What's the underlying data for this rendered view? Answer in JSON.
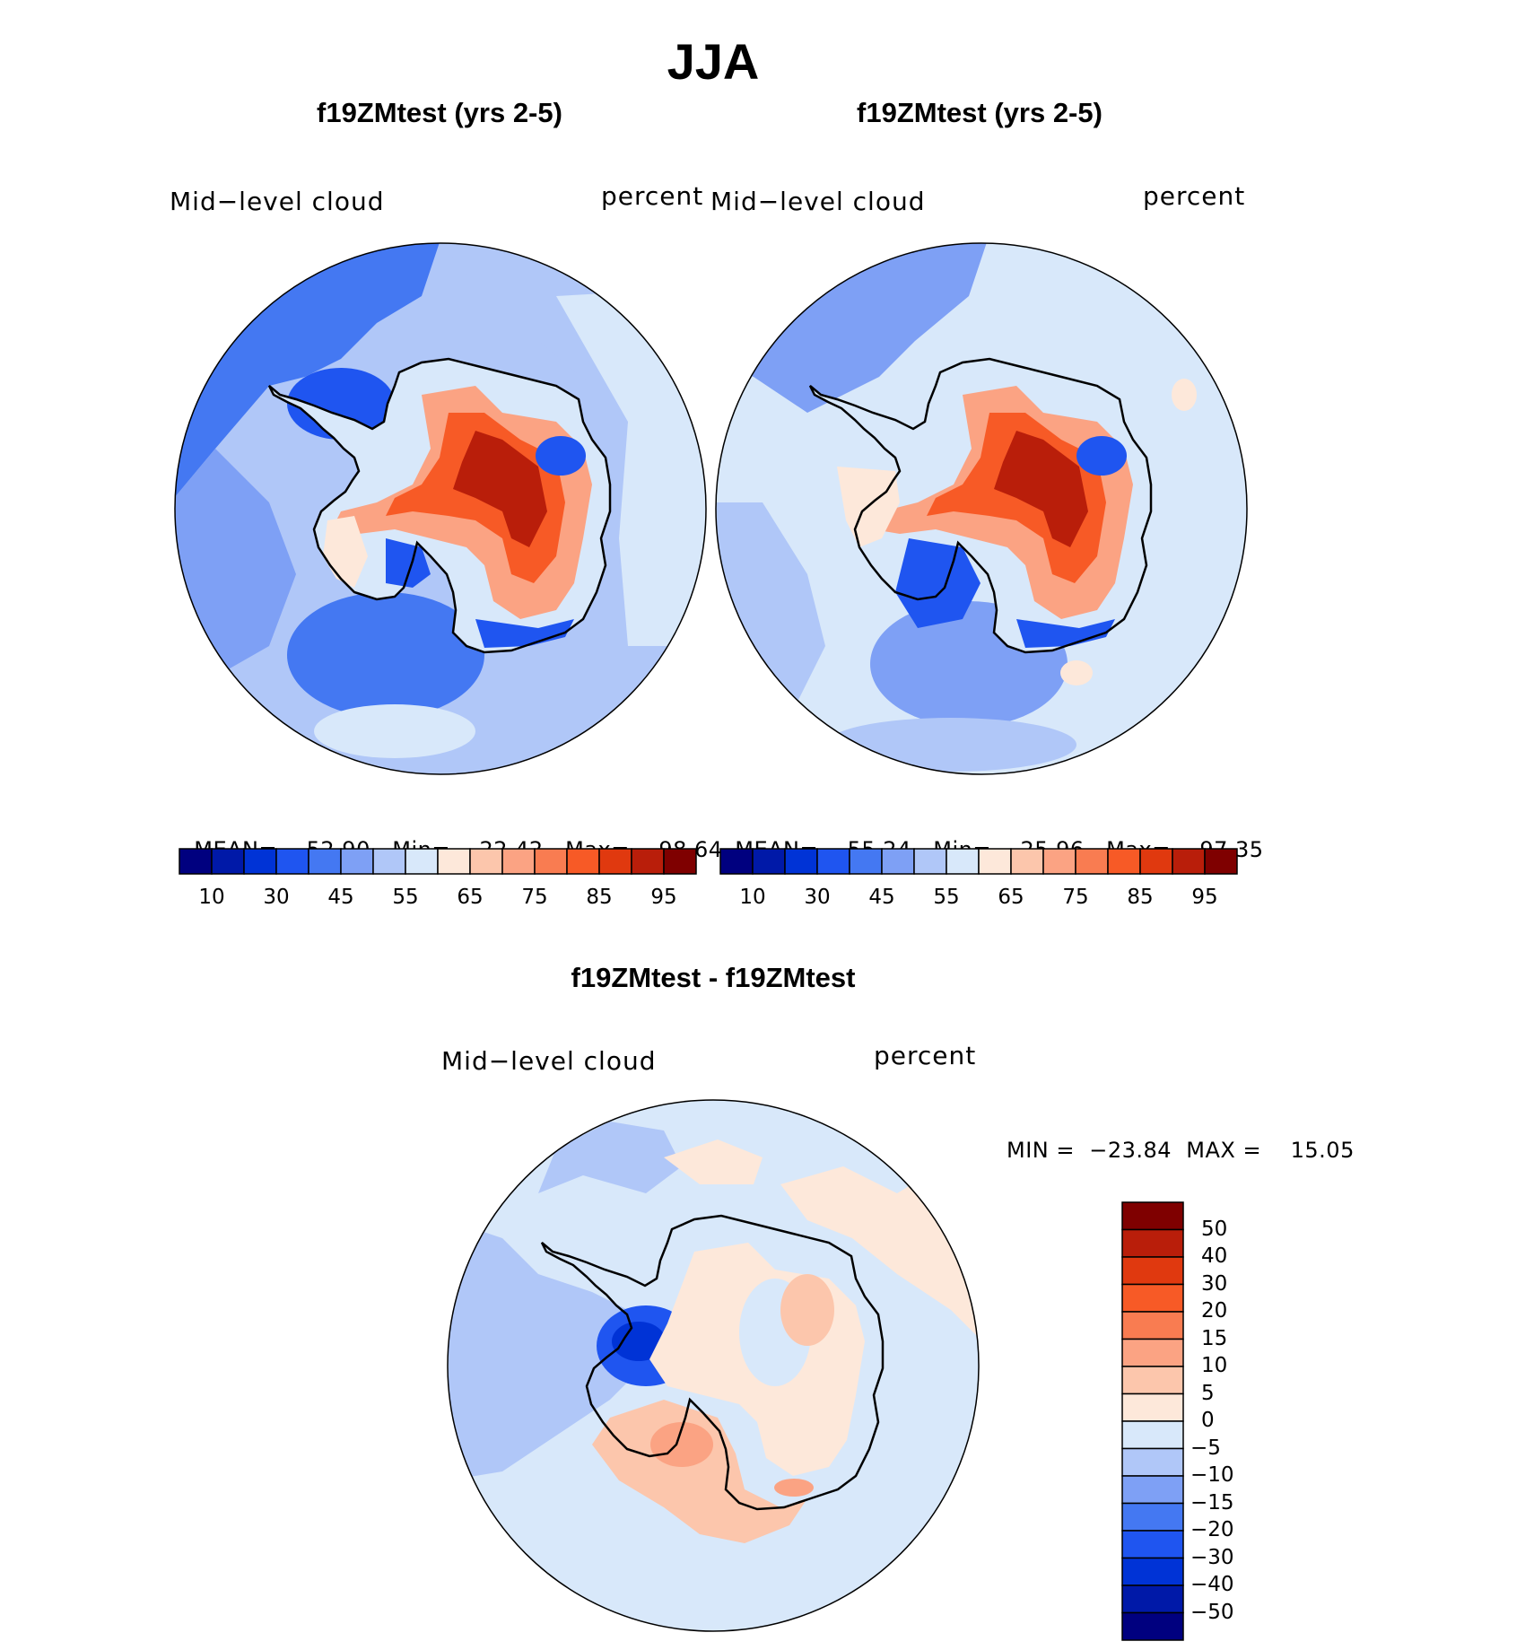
{
  "title": "JJA",
  "panels": [
    {
      "title": "f19ZMtest (yrs 2-5)",
      "variable": "Mid−level cloud",
      "units": "percent",
      "stats": {
        "mean_label": "MEAN=",
        "mean": "52.90",
        "min_label": "Min=",
        "min": "22.42",
        "max_label": "Max=",
        "max": "98.64"
      },
      "ticks": [
        "10",
        "30",
        "45",
        "55",
        "65",
        "75",
        "85",
        "95"
      ]
    },
    {
      "title": "f19ZMtest (yrs 2-5)",
      "variable": "Mid−level cloud",
      "units": "percent",
      "stats": {
        "mean_label": "MEAN=",
        "mean": "55.24",
        "min_label": "Min=",
        "min": "25.96",
        "max_label": "Max=",
        "max": "97.35"
      },
      "ticks": [
        "10",
        "30",
        "45",
        "55",
        "65",
        "75",
        "85",
        "95"
      ]
    }
  ],
  "diff": {
    "title": "f19ZMtest - f19ZMtest",
    "variable": "Mid−level cloud",
    "units": "percent",
    "minmax": "MIN =  −23.84  MAX =    15.05",
    "ticks": [
      "50",
      "40",
      "30",
      "20",
      "15",
      "10",
      "5",
      "0",
      "−5",
      "−10",
      "−15",
      "−20",
      "−30",
      "−40",
      "−50"
    ]
  },
  "colors": {
    "abs_scale": [
      "#00007f",
      "#0019a8",
      "#0033d6",
      "#1f55f0",
      "#4478f2",
      "#7ea0f5",
      "#b0c7f8",
      "#d8e8fa",
      "#fde8da",
      "#fcc6ac",
      "#fba383",
      "#f97c51",
      "#f75a26",
      "#e0390f",
      "#b91e0a",
      "#7f0000"
    ],
    "diff_scale": [
      "#7f0000",
      "#b91e0a",
      "#e0390f",
      "#f75a26",
      "#f97c51",
      "#fba383",
      "#fcc6ac",
      "#fde8da",
      "#d8e8fa",
      "#b0c7f8",
      "#7ea0f5",
      "#4478f2",
      "#1f55f0",
      "#0033d6",
      "#0019a8",
      "#00007f"
    ]
  }
}
